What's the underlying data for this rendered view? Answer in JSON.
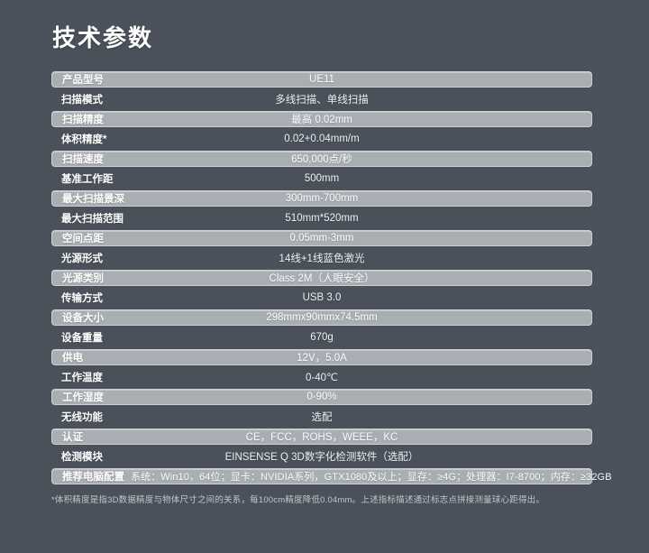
{
  "colors": {
    "background": "#4a515a",
    "band_fill": "#a9aeb3",
    "band_border": "#ccd0d4",
    "title_text": "#ffffff",
    "value_text": "#eef1f3",
    "footnote_text": "#c2c6ca"
  },
  "header": {
    "title": "技术参数"
  },
  "table": {
    "rows": [
      {
        "label": "产品型号",
        "value": "UE11",
        "band": true,
        "value_align": "center"
      },
      {
        "label": "扫描模式",
        "value": "多线扫描、单线扫描",
        "band": false,
        "value_align": "center"
      },
      {
        "label": "扫描精度",
        "value": "最高 0.02mm",
        "band": true,
        "value_align": "center"
      },
      {
        "label": "体积精度*",
        "value": "0.02+0.04mm/m",
        "band": false,
        "value_align": "center"
      },
      {
        "label": "扫描速度",
        "value": "650,000点/秒",
        "band": true,
        "value_align": "center"
      },
      {
        "label": "基准工作距",
        "value": "500mm",
        "band": false,
        "value_align": "center"
      },
      {
        "label": "最大扫描景深",
        "value": "300mm-700mm",
        "band": true,
        "value_align": "center"
      },
      {
        "label": "最大扫描范围",
        "value": "510mm*520mm",
        "band": false,
        "value_align": "center"
      },
      {
        "label": "空间点距",
        "value": "0.05mm-3mm",
        "band": true,
        "value_align": "center"
      },
      {
        "label": "光源形式",
        "value": "14线+1线蓝色激光",
        "band": false,
        "value_align": "center"
      },
      {
        "label": "光源类别",
        "value": "Class 2M（人眼安全）",
        "band": true,
        "value_align": "center"
      },
      {
        "label": "传输方式",
        "value": "USB 3.0",
        "band": false,
        "value_align": "center"
      },
      {
        "label": "设备大小",
        "value": "298mmx90mmx74.5mm",
        "band": true,
        "value_align": "center"
      },
      {
        "label": "设备重量",
        "value": "670g",
        "band": false,
        "value_align": "center"
      },
      {
        "label": "供电",
        "value": "12V，5.0A",
        "band": true,
        "value_align": "center"
      },
      {
        "label": "工作温度",
        "value": "0-40℃",
        "band": false,
        "value_align": "center"
      },
      {
        "label": "工作湿度",
        "value": "0-90%",
        "band": true,
        "value_align": "center"
      },
      {
        "label": "无线功能",
        "value": "选配",
        "band": false,
        "value_align": "center"
      },
      {
        "label": "认证",
        "value": "CE，FCC，ROHS，WEEE，KC",
        "band": true,
        "value_align": "center"
      },
      {
        "label": "检测模块",
        "value": "EINSENSE Q 3D数字化检测软件（选配）",
        "band": false,
        "value_align": "center"
      },
      {
        "label": "推荐电脑配置",
        "value": "系统：Win10，64位；显卡：NVIDIA系列，GTX1080及以上；显存：≥4G；处理器：I7-8700；内存：≥32GB",
        "band": true,
        "value_align": "left"
      }
    ]
  },
  "footer": {
    "note": "*体积精度是指3D数据精度与物体尺寸之间的关系，每100cm精度降低0.04mm。上述指标描述通过标志点拼接测量球心距得出。"
  }
}
